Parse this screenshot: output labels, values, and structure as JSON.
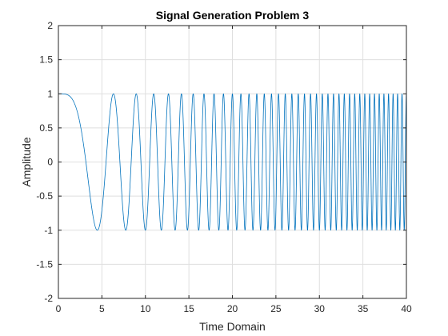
{
  "chart_data": {
    "type": "line",
    "title": "Signal Generation Problem 3",
    "xlabel": "Time Domain",
    "ylabel": "Amplitude",
    "xlim": [
      0,
      40
    ],
    "ylim": [
      -2,
      2
    ],
    "xticks": [
      0,
      5,
      10,
      15,
      20,
      25,
      30,
      35,
      40
    ],
    "yticks": [
      -2,
      -1.5,
      -1,
      -0.5,
      0,
      0.5,
      1,
      1.5,
      2
    ],
    "xtick_labels": [
      "0",
      "5",
      "10",
      "15",
      "20",
      "25",
      "30",
      "35",
      "40"
    ],
    "ytick_labels": [
      "-2",
      "-1.5",
      "-1",
      "-0.5",
      "0",
      "0.5",
      "1",
      "1.5",
      "2"
    ],
    "grid": true,
    "series": [
      {
        "color": "#0072BD",
        "function": "cos(0.05*pi*t^2)",
        "t_range": [
          0,
          40
        ],
        "amplitude": 1
      }
    ]
  }
}
